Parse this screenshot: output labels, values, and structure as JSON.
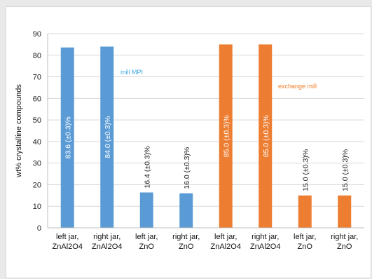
{
  "chart_data": {
    "type": "bar",
    "title": "",
    "xlabel": "",
    "ylabel": "wt% crystalline compounds",
    "ylim": [
      0,
      90
    ],
    "yticks": [
      0,
      10,
      20,
      30,
      40,
      50,
      60,
      70,
      80,
      90
    ],
    "grid": true,
    "categories": [
      [
        "left jar,",
        "ZnAl2O4"
      ],
      [
        "right jar,",
        "ZnAl2O4"
      ],
      [
        "left jar,",
        "ZnO"
      ],
      [
        "right jar,",
        "ZnO"
      ],
      [
        "left jar,",
        "ZnAl2O4"
      ],
      [
        "right jar,",
        "ZnAl2O4"
      ],
      [
        "left jar,",
        "ZnO"
      ],
      [
        "right jar,",
        "ZnO"
      ]
    ],
    "values": [
      83.6,
      84.0,
      16.4,
      16.0,
      85.0,
      85.0,
      15.0,
      15.0
    ],
    "data_labels": [
      "83.6 (±0.3)%",
      "84.0 (±0.3)%",
      "16.4 (±0.3)%",
      "16.0 (±0.3)%",
      "85.0 (±0.3)%",
      "85.0 (±0.3)%",
      "15.0 (±0.3)%",
      "15.0 (±0.3)%"
    ],
    "label_inside": [
      true,
      true,
      false,
      false,
      true,
      true,
      false,
      false
    ],
    "bar_groups": [
      "mill MPI",
      "mill MPI",
      "mill MPI",
      "mill MPI",
      "exchange mill",
      "exchange mill",
      "exchange mill",
      "exchange mill"
    ],
    "annotations": [
      {
        "text": "mill MPI",
        "color": "#3fa8e0"
      },
      {
        "text": "exchange mill",
        "color": "#f07e2a"
      }
    ],
    "colors": {
      "mill MPI": "#5b9bd5",
      "exchange mill": "#ed7d31"
    }
  }
}
